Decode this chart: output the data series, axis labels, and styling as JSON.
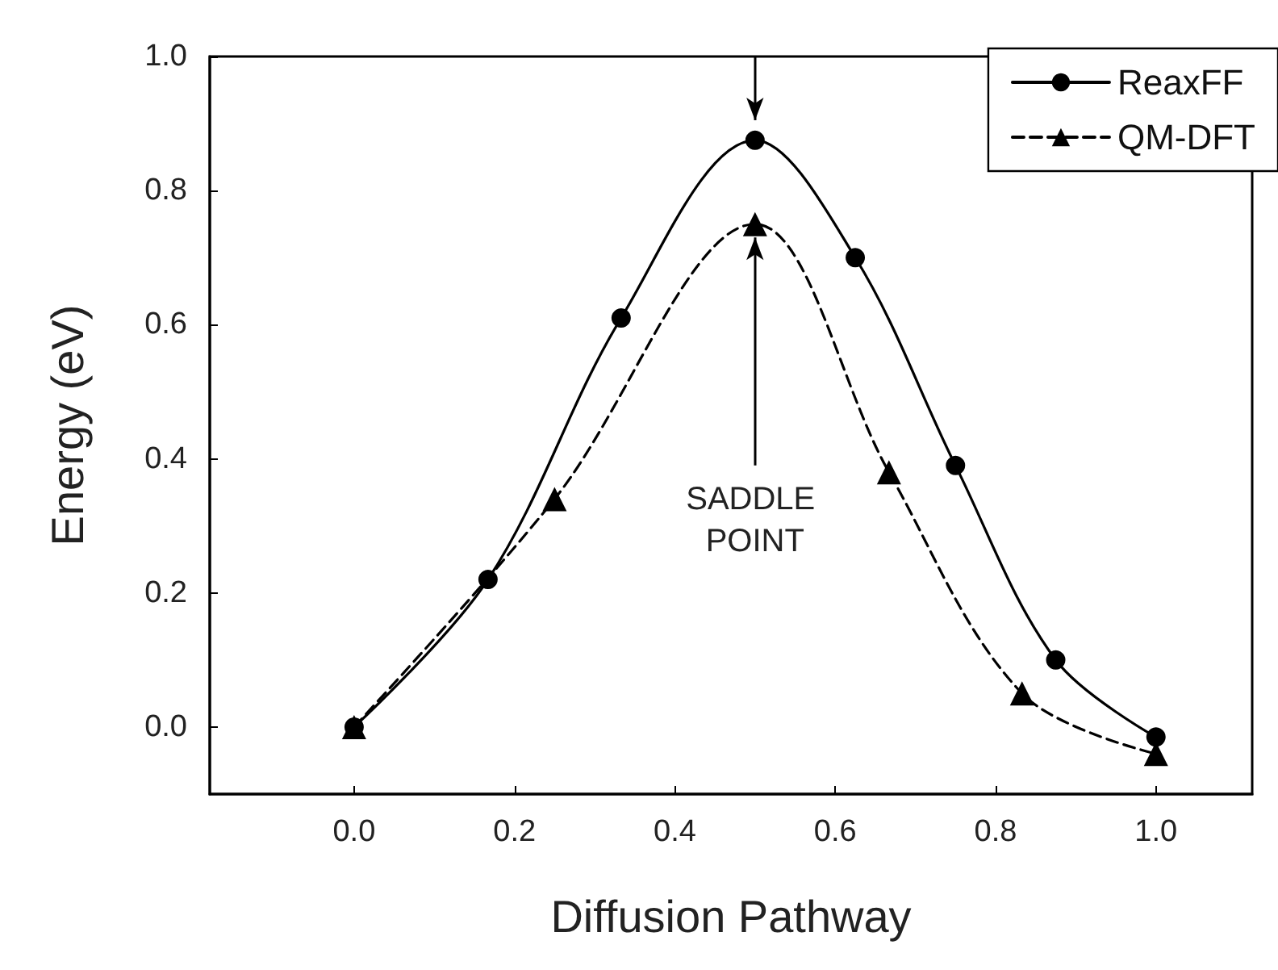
{
  "chart_data": {
    "type": "line",
    "xlabel": "Diffusion Pathway",
    "ylabel": "Energy (eV)",
    "xlim": [
      -0.18,
      1.12
    ],
    "ylim": [
      -0.1,
      1.0
    ],
    "xticks": [
      {
        "value": 0,
        "label": "0.0"
      },
      {
        "value": 0.2,
        "label": "0.2"
      },
      {
        "value": 0.4,
        "label": "0.4"
      },
      {
        "value": 0.6,
        "label": "0.6"
      },
      {
        "value": 0.8,
        "label": "0.8"
      },
      {
        "value": 1,
        "label": "1.0"
      }
    ],
    "yticks": [
      {
        "value": 0,
        "label": "0.0"
      },
      {
        "value": 0.2,
        "label": "0.2"
      },
      {
        "value": 0.4,
        "label": "0.4"
      },
      {
        "value": 0.6,
        "label": "0.6"
      },
      {
        "value": 0.8,
        "label": "0.8"
      },
      {
        "value": 1,
        "label": "1.0"
      }
    ],
    "series": [
      {
        "name": "ReaxFF",
        "color": "#000000",
        "marker": "circle",
        "line_style": "solid",
        "x": [
          0,
          0.167,
          0.333,
          0.5,
          0.625,
          0.75,
          0.875,
          1.0
        ],
        "values": [
          0,
          0.22,
          0.61,
          0.875,
          0.7,
          0.39,
          0.1,
          -0.015
        ]
      },
      {
        "name": "QM-DFT",
        "color": "#000000",
        "marker": "triangle",
        "line_style": "dashed",
        "x": [
          0,
          0.25,
          0.5,
          0.667,
          0.833,
          1.0
        ],
        "values": [
          0,
          0.34,
          0.75,
          0.38,
          0.05,
          -0.04
        ]
      }
    ],
    "annotations": [
      {
        "text": "SADDLE POINT",
        "x": 0.5,
        "y": 0.75
      }
    ],
    "legend": "top right",
    "grid": false
  }
}
